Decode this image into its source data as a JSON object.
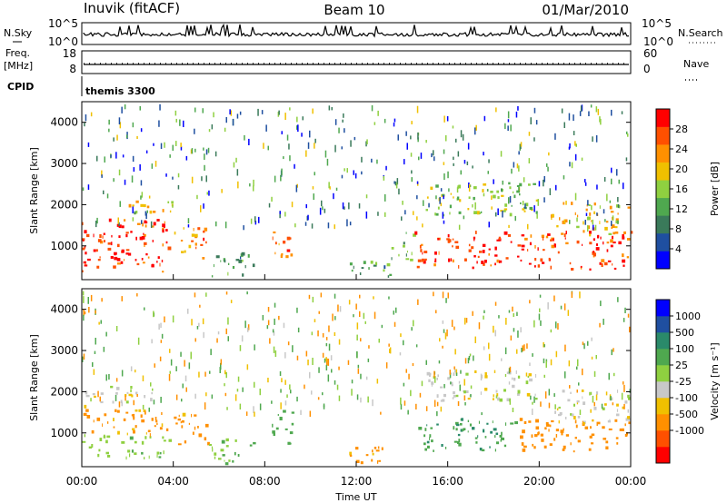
{
  "header": {
    "station": "Inuvik (fitACF)",
    "beam": "Beam 10",
    "date": "01/Mar/2010"
  },
  "meta_panels": {
    "nsky_label": "N.Sky",
    "nsky_ticks": [
      "10^5",
      "10^0"
    ],
    "nsearch_label": "N.Search",
    "nsearch_ticks": [
      "10^5",
      "10^0"
    ],
    "freq_label_line1": "Freq.",
    "freq_label_line2": "[MHz]",
    "freq_ticks": [
      "18",
      "8"
    ],
    "nave_label": "Nave",
    "nave_ticks": [
      "60",
      "0"
    ],
    "cpid_label": "CPID",
    "cpid_value": "themis 3300"
  },
  "colors": {
    "scale_power": [
      "#0000ff",
      "#1f4fa0",
      "#3a7a5a",
      "#4fa84f",
      "#8fd040",
      "#f0c000",
      "#ff9000",
      "#ff5000",
      "#ff0000"
    ],
    "scale_velocity": [
      "#ff0000",
      "#ff5000",
      "#ff9000",
      "#f0c000",
      "#c8c8c8",
      "#8fd040",
      "#4fa84f",
      "#2a8a6a",
      "#1f4fa0",
      "#0000ff"
    ]
  },
  "chart_data": [
    {
      "type": "heatmap",
      "panel": "power",
      "ylabel": "Slant Range [km]",
      "ylim": [
        180,
        4500
      ],
      "yticks": [
        "1000",
        "2000",
        "3000",
        "4000"
      ],
      "colorbar": {
        "label": "Power [dB]",
        "range": [
          0,
          32
        ],
        "ticks": [
          "4",
          "8",
          "12",
          "16",
          "20",
          "24",
          "28"
        ]
      },
      "regions": [
        {
          "t": [
            0.0,
            3.8
          ],
          "r": [
            350,
            1600
          ],
          "level": 28
        },
        {
          "t": [
            0.0,
            2.0
          ],
          "r": [
            500,
            900
          ],
          "level": 30
        },
        {
          "t": [
            2.0,
            4.2
          ],
          "r": [
            1700,
            2100
          ],
          "level": 20
        },
        {
          "t": [
            4.0,
            5.5
          ],
          "r": [
            600,
            1400
          ],
          "level": 24
        },
        {
          "t": [
            5.5,
            7.5
          ],
          "r": [
            200,
            800
          ],
          "level": 12
        },
        {
          "t": [
            8.3,
            9.3
          ],
          "r": [
            700,
            1500
          ],
          "level": 24
        },
        {
          "t": [
            11.5,
            13.5
          ],
          "r": [
            200,
            650
          ],
          "level": 12
        },
        {
          "t": [
            13.5,
            14.5
          ],
          "r": [
            600,
            1300
          ],
          "level": 14
        },
        {
          "t": [
            14.5,
            24.0
          ],
          "r": [
            400,
            1300
          ],
          "level": 28
        },
        {
          "t": [
            20.5,
            24.0
          ],
          "r": [
            1200,
            2000
          ],
          "level": 20
        },
        {
          "t": [
            15.0,
            20.0
          ],
          "r": [
            1700,
            2500
          ],
          "level": 16
        }
      ]
    },
    {
      "type": "heatmap",
      "panel": "velocity",
      "ylabel": "Slant Range [km]",
      "xlabel": "Time UT",
      "ylim": [
        180,
        4500
      ],
      "yticks": [
        "1000",
        "2000",
        "3000",
        "4000"
      ],
      "xticks": [
        "00:00",
        "04:00",
        "08:00",
        "12:00",
        "16:00",
        "20:00",
        "00:00"
      ],
      "colorbar": {
        "label": "Velocity [m s⁻¹]",
        "ticks": [
          "1000",
          "500",
          "100",
          "25",
          "-25",
          "-100",
          "-500",
          "-1000"
        ]
      },
      "regions": [
        {
          "t": [
            0.0,
            3.8
          ],
          "r": [
            350,
            900
          ],
          "level": 80
        },
        {
          "t": [
            0.0,
            3.8
          ],
          "r": [
            900,
            1600
          ],
          "level": -150
        },
        {
          "t": [
            0.0,
            3.5
          ],
          "r": [
            1700,
            2100
          ],
          "level": 0
        },
        {
          "t": [
            4.0,
            5.5
          ],
          "r": [
            600,
            1400
          ],
          "level": -150
        },
        {
          "t": [
            5.5,
            7.5
          ],
          "r": [
            200,
            800
          ],
          "level": 80
        },
        {
          "t": [
            8.3,
            9.3
          ],
          "r": [
            700,
            1500
          ],
          "level": 300
        },
        {
          "t": [
            11.5,
            13.5
          ],
          "r": [
            200,
            650
          ],
          "level": -150
        },
        {
          "t": [
            14.5,
            19.0
          ],
          "r": [
            500,
            1300
          ],
          "level": 400
        },
        {
          "t": [
            19.0,
            24.0
          ],
          "r": [
            500,
            1300
          ],
          "level": -200
        },
        {
          "t": [
            20.5,
            24.0
          ],
          "r": [
            1200,
            2000
          ],
          "level": 0
        },
        {
          "t": [
            15.0,
            20.0
          ],
          "r": [
            1700,
            2500
          ],
          "level": 0
        }
      ]
    }
  ]
}
